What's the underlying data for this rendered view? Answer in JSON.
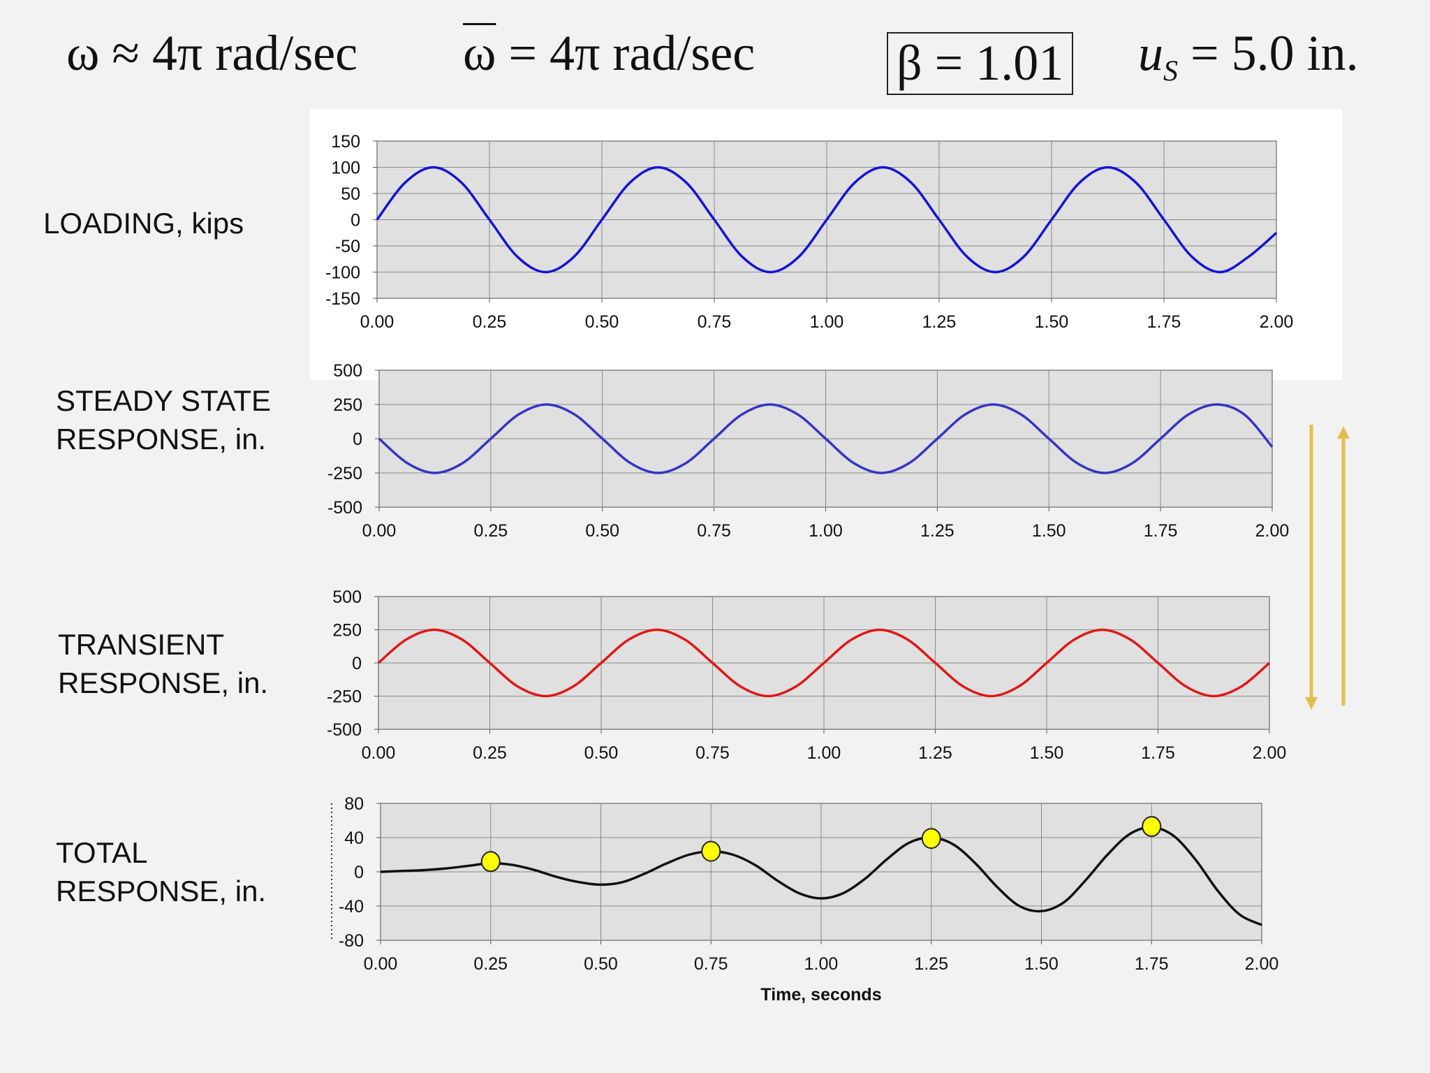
{
  "header": {
    "omega": "ω ≈ 4π rad/sec",
    "omega_bar_symbol": "ω",
    "omega_bar_rest": " = 4π rad/sec",
    "beta": "β = 1.01",
    "us_symbol": "u",
    "us_subscript": "S",
    "us_rest": " = 5.0 in."
  },
  "colors": {
    "loading": "#1414d6",
    "steady": "#3535c4",
    "transient": "#e01818",
    "total": "#111111",
    "marker": "#ffff00",
    "arrow": "#e6bd4a",
    "plot_bg": "#e0e0e0"
  },
  "chart_data": [
    {
      "type": "line",
      "label": "LOADING, kips",
      "xlim": [
        0,
        2
      ],
      "ylim": [
        -150,
        150
      ],
      "xticks": [
        "0.00",
        "0.25",
        "0.50",
        "0.75",
        "1.00",
        "1.25",
        "1.50",
        "1.75",
        "2.00"
      ],
      "yticks": [
        "150",
        "100",
        "50",
        "0",
        "-50",
        "-100",
        "-150"
      ],
      "grid": true,
      "x": [
        0,
        0.0625,
        0.125,
        0.1875,
        0.25,
        0.3125,
        0.375,
        0.4375,
        0.5,
        0.5625,
        0.625,
        0.6875,
        0.75,
        0.8125,
        0.875,
        0.9375,
        1.0,
        1.0625,
        1.125,
        1.1875,
        1.25,
        1.3125,
        1.375,
        1.4375,
        1.5,
        1.5625,
        1.625,
        1.6875,
        1.75,
        1.8125,
        1.875,
        1.9375,
        2.0
      ],
      "y": [
        0,
        71,
        100,
        71,
        0,
        -71,
        -100,
        -71,
        0,
        71,
        100,
        71,
        0,
        -71,
        -100,
        -71,
        0,
        71,
        100,
        71,
        0,
        -71,
        -100,
        -71,
        0,
        71,
        100,
        71,
        0,
        -71,
        -100,
        -71,
        -25
      ]
    },
    {
      "type": "line",
      "label": "STEADY STATE RESPONSE, in.",
      "xlim": [
        0,
        2
      ],
      "ylim": [
        -500,
        500
      ],
      "xticks": [
        "0.00",
        "0.25",
        "0.50",
        "0.75",
        "1.00",
        "1.25",
        "1.50",
        "1.75",
        "2.00"
      ],
      "yticks": [
        "500",
        "250",
        "0",
        "-250",
        "-500"
      ],
      "grid": true,
      "x": [
        0,
        0.0625,
        0.125,
        0.1875,
        0.25,
        0.3125,
        0.375,
        0.4375,
        0.5,
        0.5625,
        0.625,
        0.6875,
        0.75,
        0.8125,
        0.875,
        0.9375,
        1.0,
        1.0625,
        1.125,
        1.1875,
        1.25,
        1.3125,
        1.375,
        1.4375,
        1.5,
        1.5625,
        1.625,
        1.6875,
        1.75,
        1.8125,
        1.875,
        1.9375,
        2.0
      ],
      "y": [
        0,
        -177,
        -250,
        -177,
        0,
        177,
        250,
        177,
        0,
        -177,
        -250,
        -177,
        0,
        177,
        250,
        177,
        0,
        -177,
        -250,
        -177,
        0,
        177,
        250,
        177,
        0,
        -177,
        -250,
        -177,
        0,
        177,
        250,
        177,
        -60
      ]
    },
    {
      "type": "line",
      "label": "TRANSIENT RESPONSE, in.",
      "xlim": [
        0,
        2
      ],
      "ylim": [
        -500,
        500
      ],
      "xticks": [
        "0.00",
        "0.25",
        "0.50",
        "0.75",
        "1.00",
        "1.25",
        "1.50",
        "1.75",
        "2.00"
      ],
      "yticks": [
        "500",
        "250",
        "0",
        "-250",
        "-500"
      ],
      "grid": true,
      "x": [
        0,
        0.0625,
        0.125,
        0.1875,
        0.25,
        0.3125,
        0.375,
        0.4375,
        0.5,
        0.5625,
        0.625,
        0.6875,
        0.75,
        0.8125,
        0.875,
        0.9375,
        1.0,
        1.0625,
        1.125,
        1.1875,
        1.25,
        1.3125,
        1.375,
        1.4375,
        1.5,
        1.5625,
        1.625,
        1.6875,
        1.75,
        1.8125,
        1.875,
        1.9375,
        2.0
      ],
      "y": [
        0,
        177,
        250,
        177,
        0,
        -177,
        -250,
        -177,
        0,
        177,
        250,
        177,
        0,
        -177,
        -250,
        -177,
        0,
        177,
        250,
        177,
        0,
        -177,
        -250,
        -177,
        0,
        177,
        250,
        177,
        0,
        -177,
        -250,
        -177,
        0
      ]
    },
    {
      "type": "line",
      "label": "TOTAL RESPONSE, in.",
      "xlim": [
        0,
        2
      ],
      "ylim": [
        -80,
        80
      ],
      "xlabel": "Time, seconds",
      "xticks": [
        "0.00",
        "0.25",
        "0.50",
        "0.75",
        "1.00",
        "1.25",
        "1.50",
        "1.75",
        "2.00"
      ],
      "yticks": [
        "80",
        "40",
        "0",
        "-40",
        "-80"
      ],
      "grid": true,
      "x": [
        0,
        0.05,
        0.1,
        0.15,
        0.2,
        0.25,
        0.3,
        0.35,
        0.4,
        0.45,
        0.5,
        0.55,
        0.6,
        0.65,
        0.7,
        0.75,
        0.8,
        0.85,
        0.9,
        0.95,
        1.0,
        1.05,
        1.1,
        1.15,
        1.2,
        1.25,
        1.3,
        1.35,
        1.4,
        1.45,
        1.5,
        1.55,
        1.6,
        1.65,
        1.7,
        1.75,
        1.8,
        1.85,
        1.9,
        1.95,
        2.0
      ],
      "y": [
        0,
        1,
        2,
        4,
        7,
        10,
        8,
        2,
        -6,
        -12,
        -15,
        -12,
        -2,
        10,
        20,
        24,
        20,
        8,
        -10,
        -25,
        -31,
        -25,
        -8,
        15,
        34,
        40,
        32,
        10,
        -18,
        -40,
        -46,
        -36,
        -10,
        20,
        44,
        52,
        42,
        14,
        -22,
        -50,
        -62
      ],
      "markers": [
        {
          "x": 0.25,
          "y": 12
        },
        {
          "x": 0.75,
          "y": 24
        },
        {
          "x": 1.25,
          "y": 39
        },
        {
          "x": 1.75,
          "y": 53
        }
      ]
    }
  ]
}
